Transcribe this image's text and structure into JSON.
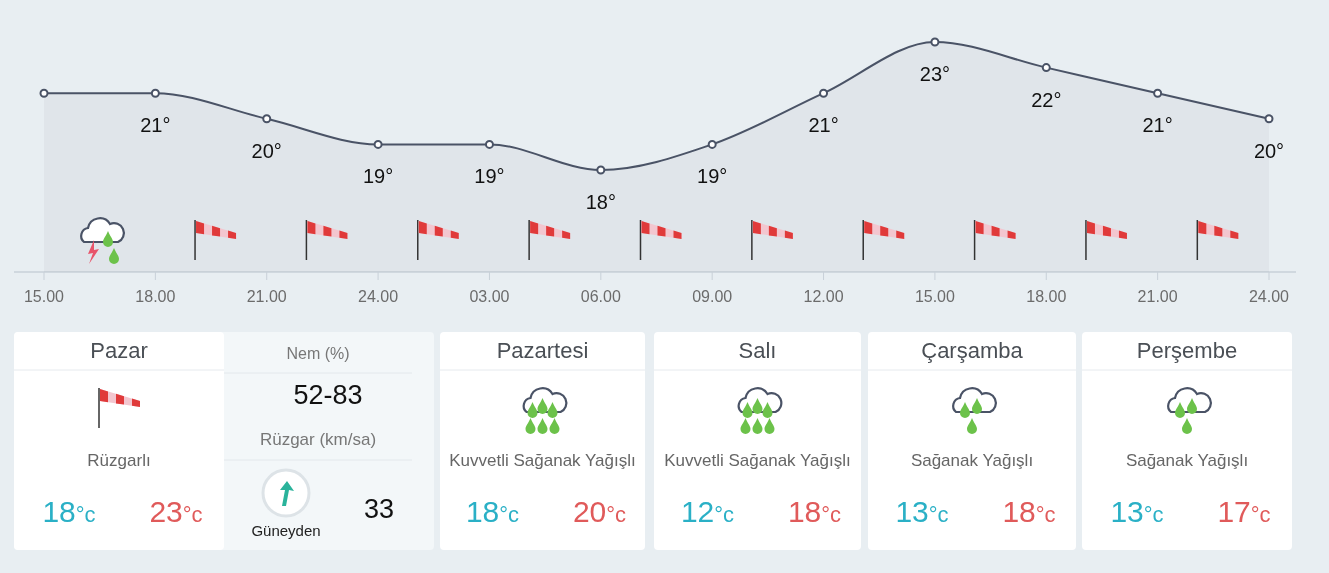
{
  "chart_data": [
    {
      "type": "area",
      "categories": [
        "15.00",
        "18.00",
        "21.00",
        "24.00",
        "03.00",
        "06.00",
        "09.00",
        "12.00",
        "15.00",
        "18.00",
        "21.00",
        "24.00"
      ],
      "values": [
        21,
        21,
        20,
        19,
        19,
        18,
        19,
        21,
        23,
        22,
        21,
        20
      ],
      "value_labels": [
        null,
        "21°",
        "20°",
        "19°",
        "19°",
        "18°",
        "19°",
        "21°",
        "23°",
        "22°",
        "21°",
        "20°"
      ],
      "color": "#4a5366",
      "marker": "circle"
    },
    {
      "type": "other",
      "categories": [
        "Pazar",
        "Pazartesi",
        "Salı",
        "Çarşamba",
        "Perşembe"
      ],
      "annotations": [
        "Nem (%)",
        "52-83",
        "Rüzgar (km/sa)",
        "Güneyden",
        "33",
        "Rüzgarlı",
        "18°c",
        "23°c",
        "Kuvvetli Sağanak Yağışlı",
        "18°c",
        "20°c",
        "Kuvvetli Sağanak Yağışlı",
        "12°c",
        "18°c",
        "Sağanak Yağışlı",
        "13°c",
        "18°c",
        "Sağanak Yağışlı",
        "13°c",
        "17°c"
      ]
    }
  ]
}
